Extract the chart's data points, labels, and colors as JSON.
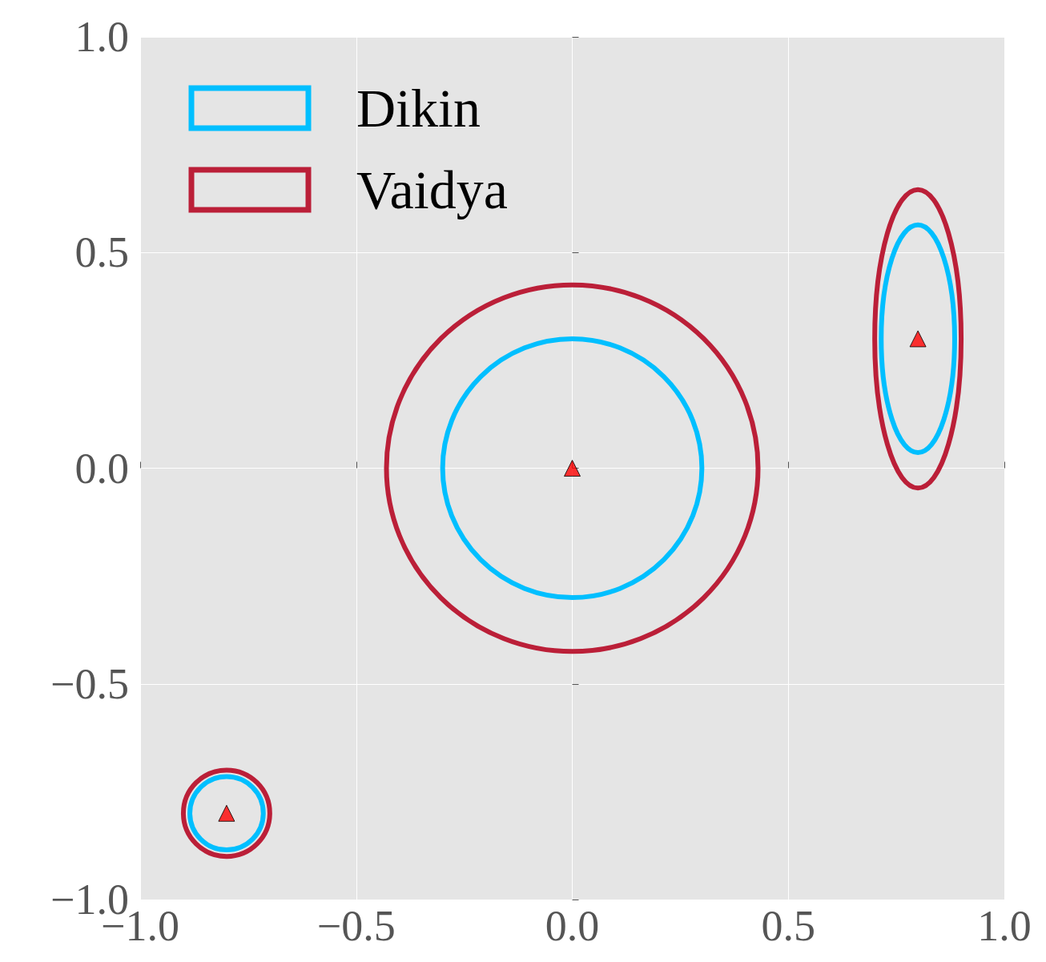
{
  "chart_data": {
    "type": "scatter",
    "xlim": [
      -1,
      1
    ],
    "ylim": [
      -1,
      1
    ],
    "xticks": [
      {
        "value": -1,
        "label": "−1.0"
      },
      {
        "value": -0.5,
        "label": "−0.5"
      },
      {
        "value": 0,
        "label": "0.0"
      },
      {
        "value": 0.5,
        "label": "0.5"
      },
      {
        "value": 1,
        "label": "1.0"
      }
    ],
    "yticks": [
      {
        "value": -1,
        "label": "−1.0"
      },
      {
        "value": -0.5,
        "label": "−0.5"
      },
      {
        "value": 0,
        "label": "0.0"
      },
      {
        "value": 0.5,
        "label": "0.5"
      },
      {
        "value": 1,
        "label": "1.0"
      }
    ],
    "grid": true,
    "marker": "triangle",
    "annotations": [
      "Dikin",
      "Vaidya"
    ],
    "series": [
      {
        "color": "#ff0000",
        "x": [
          0,
          0.8,
          -0.8
        ],
        "values": [
          0,
          0.3,
          -0.8
        ]
      }
    ]
  }
}
